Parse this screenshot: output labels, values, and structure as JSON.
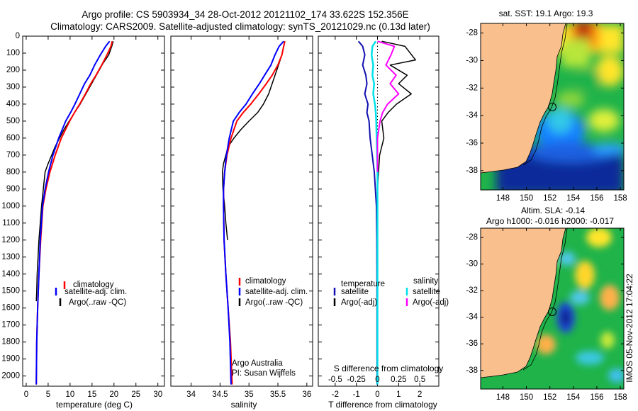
{
  "header": {
    "line1": "Argo profile: CS 5903934_34 28-Oct-2012 20121102_174 33.622S 152.356E",
    "line2": "Climatology: CARS2009. Satellite-adjusted climatology: synTS_20121029.nc (0.13d later)"
  },
  "colors": {
    "climatology": "#ff0000",
    "satellite": "#0000ff",
    "argo": "#000000",
    "t_satellite": "#1010b0",
    "s_satellite": "#00e0e8",
    "s_argo": "#ff00ff",
    "land": "#f9c08e"
  },
  "chart_data": [
    {
      "type": "line",
      "name": "temperature-profile",
      "xlabel": "temperature (deg C)",
      "ylabel": "",
      "xlim": [
        -0.8,
        31.5
      ],
      "ylim": [
        2060,
        0
      ],
      "xticks": [
        0,
        5,
        10,
        15,
        20,
        25,
        30
      ],
      "yticks": [
        0,
        100,
        200,
        300,
        400,
        500,
        600,
        700,
        800,
        900,
        1000,
        1100,
        1200,
        1300,
        1400,
        1500,
        1600,
        1700,
        1800,
        1900,
        2000
      ],
      "legend": [
        "climatology",
        "satellite-adj. clim.",
        "Argo(..raw -QC)"
      ],
      "legend_position": "lower-center",
      "series": [
        {
          "name": "climatology",
          "x": [
            19.6,
            19.3,
            18.4,
            17.2,
            15.9,
            14.7,
            13.5,
            12.2,
            11.0,
            9.9,
            8.0,
            6.6,
            5.4,
            4.5,
            3.8,
            3.3,
            2.9,
            2.6,
            2.4,
            2.3
          ],
          "y": [
            30,
            60,
            110,
            170,
            230,
            280,
            340,
            400,
            450,
            500,
            600,
            700,
            800,
            900,
            1000,
            1200,
            1400,
            1600,
            1800,
            2050
          ]
        },
        {
          "name": "satellite-adj. clim.",
          "x": [
            19.0,
            18.1,
            16.9,
            15.6,
            14.5,
            13.3,
            12.2,
            11.1,
            10.1,
            9.0,
            7.4,
            6.1,
            5.1,
            4.3,
            3.7,
            3.2,
            2.9,
            2.6,
            2.4,
            2.3
          ],
          "y": [
            30,
            60,
            110,
            170,
            230,
            280,
            340,
            400,
            450,
            500,
            600,
            700,
            800,
            900,
            1000,
            1200,
            1400,
            1600,
            1800,
            2050
          ]
        },
        {
          "name": "Argo(..raw -QC)",
          "x": [
            19.8,
            19.5,
            18.8,
            17.5,
            16.2,
            14.9,
            13.6,
            12.3,
            11.0,
            9.8,
            8.6,
            7.6,
            6.6,
            5.8,
            5.0,
            4.3,
            3.9,
            3.5,
            3.2,
            2.9,
            2.7,
            2.5,
            2.4,
            2.3
          ],
          "y": [
            30,
            60,
            110,
            160,
            220,
            280,
            340,
            400,
            450,
            500,
            550,
            600,
            650,
            700,
            750,
            800,
            900,
            1000,
            1100,
            1200,
            1300,
            1400,
            1500,
            1560
          ]
        }
      ]
    },
    {
      "type": "line",
      "name": "salinity-profile",
      "xlabel": "salinity",
      "ylabel": "",
      "xlim": [
        33.65,
        36.1
      ],
      "ylim": [
        2060,
        0
      ],
      "xticks": [
        34,
        34.5,
        35,
        35.5,
        36
      ],
      "legend": [
        "climatology",
        "satellite-adj. clim.",
        "Argo(..raw -QC)"
      ],
      "legend_position": "lower-right",
      "notes": [
        "Argo Australia",
        "PI: Susan Wijffels"
      ],
      "series": [
        {
          "name": "climatology",
          "x": [
            35.62,
            35.6,
            35.57,
            35.5,
            35.4,
            35.3,
            35.17,
            35.03,
            34.9,
            34.79,
            34.69,
            34.62,
            34.58,
            34.56,
            34.56,
            34.57,
            34.6,
            34.64,
            34.68,
            34.71
          ],
          "y": [
            30,
            60,
            110,
            170,
            230,
            280,
            340,
            400,
            450,
            500,
            600,
            700,
            800,
            900,
            1000,
            1200,
            1400,
            1600,
            1800,
            2050
          ]
        },
        {
          "name": "satellite-adj. clim.",
          "x": [
            35.6,
            35.52,
            35.45,
            35.38,
            35.27,
            35.18,
            35.06,
            34.95,
            34.83,
            34.73,
            34.66,
            34.61,
            34.58,
            34.56,
            34.56,
            34.57,
            34.6,
            34.64,
            34.67,
            34.69
          ],
          "y": [
            30,
            60,
            110,
            170,
            230,
            280,
            340,
            400,
            450,
            500,
            600,
            700,
            800,
            900,
            1000,
            1200,
            1400,
            1600,
            1800,
            2050
          ]
        },
        {
          "name": "Argo(..raw -QC)",
          "x": [
            35.62,
            35.6,
            35.57,
            35.52,
            35.46,
            35.4,
            35.34,
            35.25,
            35.15,
            35.0,
            34.86,
            34.74,
            34.64,
            34.6,
            34.56,
            34.54,
            34.55,
            34.58,
            34.6,
            34.63
          ],
          "y": [
            30,
            60,
            110,
            160,
            220,
            280,
            340,
            400,
            450,
            500,
            550,
            600,
            650,
            700,
            750,
            800,
            900,
            1000,
            1100,
            1200
          ]
        }
      ]
    },
    {
      "type": "line",
      "name": "difference-profile",
      "xlabel": "T difference from climatology",
      "xlabel2": "S difference from climatology",
      "xlim": [
        -2.8,
        2.9
      ],
      "ylim": [
        2060,
        0
      ],
      "xticks": [
        -2,
        -1,
        0,
        1,
        2
      ],
      "xticks_top_row": [
        "-0.5",
        "-0.25",
        "0",
        "0.25",
        "0.5"
      ],
      "legend_temperature": {
        "title": "temperature",
        "items": [
          "satellite",
          "Argo(-adj)"
        ]
      },
      "legend_salinity": {
        "title": "salinity",
        "items": [
          "satellite",
          "Argo(-adj)"
        ]
      },
      "legend_position": "lower-center",
      "series": [
        {
          "name": "temperature satellite",
          "x": [
            -0.9,
            -0.7,
            -0.6,
            -0.7,
            -0.55,
            -0.5,
            -0.6,
            -0.45,
            -0.5,
            -0.4,
            -0.35,
            -0.25,
            -0.15,
            -0.1,
            -0.05,
            -0.03,
            -0.02,
            -0.02
          ],
          "y": [
            30,
            60,
            110,
            170,
            230,
            280,
            340,
            400,
            450,
            500,
            600,
            700,
            800,
            900,
            1000,
            1200,
            1600,
            2050
          ]
        },
        {
          "name": "temperature Argo(-adj)",
          "x": [
            0.2,
            1.3,
            1.8,
            0.6,
            1.4,
            1.0,
            1.6,
            0.9,
            0.5,
            0.2,
            0.3,
            0.1,
            0.05,
            0.0,
            0.0,
            0.0
          ],
          "y": [
            30,
            60,
            140,
            170,
            230,
            280,
            340,
            400,
            450,
            500,
            600,
            700,
            800,
            900,
            1000,
            1200
          ]
        },
        {
          "name": "salinity satellite",
          "x": [
            -0.02,
            -0.06,
            -0.07,
            -0.05,
            -0.06,
            -0.04,
            -0.05,
            -0.03,
            -0.02,
            -0.015,
            -0.01,
            -0.005,
            0.0,
            0.0,
            0.0,
            0.0
          ],
          "y": [
            30,
            60,
            110,
            170,
            230,
            280,
            340,
            400,
            450,
            500,
            600,
            700,
            800,
            1000,
            1600,
            2050
          ]
        },
        {
          "name": "salinity Argo(-adj)",
          "x": [
            0.0,
            0.2,
            0.16,
            0.1,
            0.22,
            0.15,
            0.25,
            0.12,
            0.06,
            0.03,
            0.0,
            0.0
          ],
          "y": [
            30,
            60,
            110,
            170,
            230,
            280,
            340,
            400,
            450,
            500,
            600,
            800
          ]
        }
      ]
    }
  ],
  "maps": {
    "top": {
      "title": "sat. SST: 19.1  Argo: 19.3",
      "yticks": [
        "-28",
        "-30",
        "-32",
        "-34",
        "-36",
        "-38"
      ],
      "xticks": [
        "148",
        "150",
        "152",
        "154",
        "156",
        "158"
      ]
    },
    "bottom": {
      "title1": "Altim. SLA: -0.14",
      "title2": "Argo h1000: -0.016 h2000: -0.017",
      "yticks": [
        "-28",
        "-30",
        "-32",
        "-34",
        "-36",
        "-38"
      ],
      "xticks": [
        "148",
        "150",
        "152",
        "154",
        "156",
        "158"
      ]
    },
    "side_label": "IMOS 05-Nov-2012 17:04:22"
  }
}
